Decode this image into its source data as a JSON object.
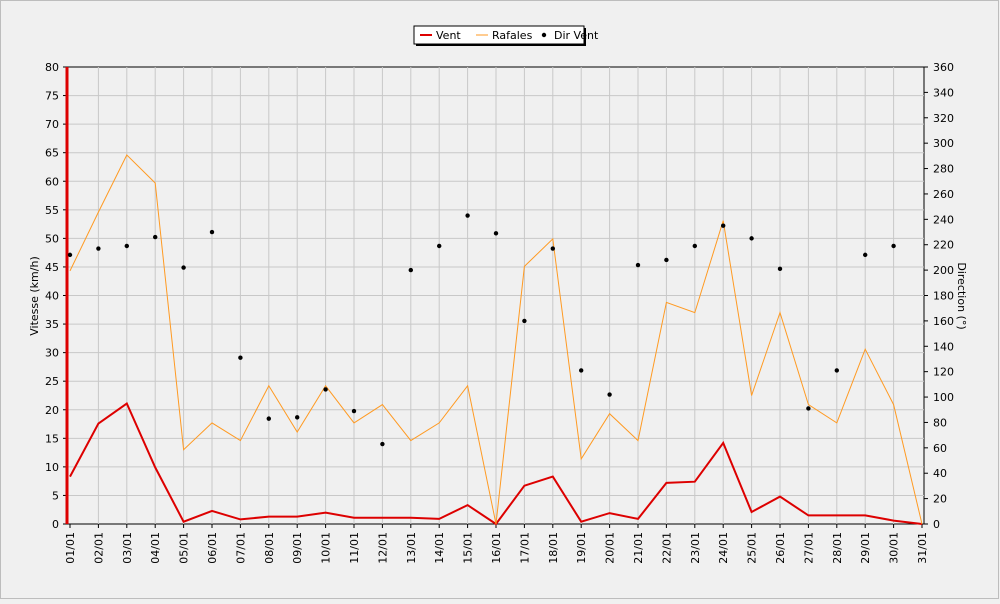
{
  "chart_data": {
    "type": "line",
    "x": [
      "01/01",
      "02/01",
      "03/01",
      "04/01",
      "05/01",
      "06/01",
      "07/01",
      "08/01",
      "09/01",
      "10/01",
      "11/01",
      "12/01",
      "13/01",
      "14/01",
      "15/01",
      "16/01",
      "17/01",
      "18/01",
      "19/01",
      "20/01",
      "21/01",
      "22/01",
      "23/01",
      "24/01",
      "25/01",
      "26/01",
      "27/01",
      "28/01",
      "29/01",
      "30/01",
      "31/01"
    ],
    "ylabel": "Vitesse (km/h)",
    "y2label": "Direction (°)",
    "ylim": [
      0,
      80
    ],
    "yticks": [
      "0",
      "5",
      "10",
      "15",
      "20",
      "25",
      "30",
      "35",
      "40",
      "45",
      "50",
      "55",
      "60",
      "65",
      "70",
      "75",
      "80"
    ],
    "y2lim": [
      0,
      360
    ],
    "y2ticks": [
      "0",
      "20",
      "40",
      "60",
      "80",
      "100",
      "120",
      "140",
      "160",
      "180",
      "200",
      "220",
      "240",
      "260",
      "280",
      "300",
      "320",
      "340",
      "360"
    ],
    "grid": true,
    "legend_position": "top-center",
    "series": [
      {
        "name": "Vent",
        "axis": "left",
        "style": "line",
        "color": "#dd0000",
        "values": [
          8.3,
          17.6,
          21.1,
          9.9,
          0.4,
          2.3,
          0.8,
          1.3,
          1.3,
          2.0,
          1.1,
          1.1,
          1.1,
          0.9,
          3.3,
          0,
          6.7,
          8.3,
          0.4,
          1.9,
          0.9,
          7.2,
          7.4,
          14.2,
          2.1,
          4.8,
          1.5,
          1.5,
          1.5,
          0.6,
          0
        ]
      },
      {
        "name": "Rafales",
        "axis": "left",
        "style": "line",
        "color": "#ff9a22",
        "values": [
          44.3,
          54.6,
          64.6,
          59.7,
          13,
          17.7,
          14.6,
          24.2,
          16.1,
          24.2,
          17.7,
          20.9,
          14.6,
          17.7,
          24.2,
          0,
          45.1,
          49.9,
          11.4,
          19.3,
          14.6,
          38.8,
          37.0,
          53.1,
          22.5,
          37.0,
          20.9,
          17.7,
          30.6,
          20.9,
          0
        ]
      },
      {
        "name": "Dir Vent",
        "axis": "right",
        "style": "points",
        "color": "#000000",
        "values": [
          212,
          217,
          219,
          226,
          202,
          230,
          131,
          83,
          84,
          106,
          89,
          63,
          200,
          219,
          243,
          229,
          160,
          217,
          121,
          102,
          204,
          208,
          219,
          235,
          225,
          201,
          91,
          121,
          212,
          219,
          null
        ]
      }
    ]
  }
}
